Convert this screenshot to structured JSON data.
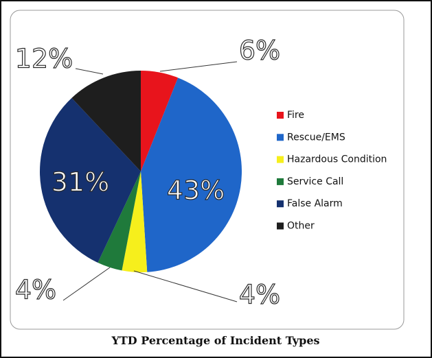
{
  "chart_data": {
    "type": "pie",
    "title": "YTD Percentage of Incident Types",
    "categories": [
      "Fire",
      "Rescue/EMS",
      "Hazardous Condition",
      "Service Call",
      "False Alarm",
      "Other"
    ],
    "values": [
      6,
      43,
      4,
      4,
      31,
      12
    ],
    "value_labels": [
      "6%",
      "43%",
      "4%",
      "4%",
      "31%",
      "12%"
    ],
    "colors": [
      "#e8141c",
      "#1f66c9",
      "#f6ef1c",
      "#1f7a3b",
      "#15316f",
      "#1e1e1e"
    ],
    "legend": "right"
  }
}
